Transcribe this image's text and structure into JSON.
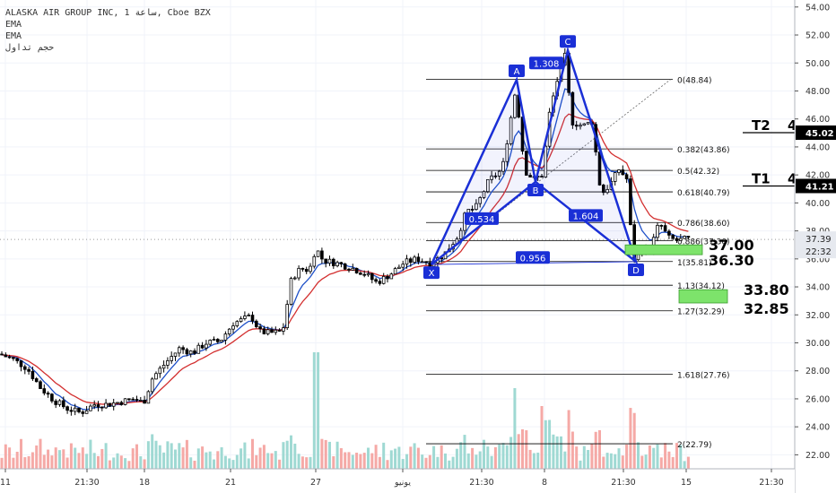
{
  "legend": {
    "title": "ALASKA AIR GROUP INC, 1 ساعة, Cboe BZX",
    "ema1": "EMA",
    "ema2": "EMA",
    "volume": "حجم تداول"
  },
  "colors": {
    "bull": "#26a69a",
    "bear": "#ef5350",
    "candle": "#000000",
    "ema_fast": "#1e50c8",
    "ema_slow": "#d32f2f",
    "pattern": "#1a2fd6",
    "zone": "#7de36b",
    "vol_up": "#9fd9d3",
    "vol_down": "#f5a9a6"
  },
  "chart_data": {
    "type": "candlestick",
    "ylim": [
      21.0,
      54.5
    ],
    "y_ticks": [
      "54.00",
      "52.00",
      "50.00",
      "48.00",
      "46.00",
      "44.00",
      "42.00",
      "40.00",
      "38.00",
      "36.00",
      "34.00",
      "32.00",
      "30.00",
      "28.00",
      "26.00",
      "24.00",
      "22.00"
    ],
    "x_ticks": [
      "11",
      "21:30",
      "18",
      "21",
      "27",
      "يونيو",
      "21:30",
      "8",
      "21:30",
      "15",
      "21:30"
    ],
    "last_price": "37.39",
    "timer": "22:32",
    "price_labels": [
      {
        "text": "45.02",
        "value": 45.02
      },
      {
        "text": "41.21",
        "value": 41.21
      }
    ],
    "fibonacci": [
      {
        "label": "0(48.84)",
        "value": 48.84
      },
      {
        "label": "0.382(43.86)",
        "value": 43.86
      },
      {
        "label": "0.5(42.32)",
        "value": 42.32
      },
      {
        "label": "0.618(40.79)",
        "value": 40.79
      },
      {
        "label": "0.786(38.60)",
        "value": 38.6
      },
      {
        "label": "0.886(37.30)",
        "value": 37.3
      },
      {
        "label": "1(35.81)",
        "value": 35.81
      },
      {
        "label": "1.13(34.12)",
        "value": 34.12
      },
      {
        "label": "1.27(32.29)",
        "value": 32.29
      },
      {
        "label": "1.618(27.76)",
        "value": 27.76
      },
      {
        "label": "2(22.79)",
        "value": 22.79
      }
    ],
    "pattern_points": [
      {
        "name": "X",
        "price": 35.6
      },
      {
        "name": "A",
        "price": 48.8
      },
      {
        "name": "B",
        "price": 41.5
      },
      {
        "name": "C",
        "price": 50.9
      },
      {
        "name": "D",
        "price": 35.8
      }
    ],
    "ratio_labels": [
      "1.308",
      "0.534",
      "1.604",
      "0.956"
    ],
    "zones": [
      {
        "upper": 37.0,
        "lower": 36.3,
        "upper_label": "37.00",
        "lower_label": "36.30"
      },
      {
        "upper": 33.8,
        "lower": 32.85,
        "upper_label": "33.80",
        "lower_label": "32.85"
      }
    ],
    "targets": [
      {
        "label": "T2",
        "count": "4",
        "value": 45.02
      },
      {
        "label": "T1",
        "count": "4",
        "value": 41.21
      }
    ],
    "close_path": [
      [
        0,
        29.2
      ],
      [
        15,
        28.8
      ],
      [
        30,
        28.2
      ],
      [
        45,
        26.8
      ],
      [
        60,
        25.9
      ],
      [
        75,
        25.3
      ],
      [
        90,
        25.0
      ],
      [
        105,
        25.6
      ],
      [
        120,
        25.6
      ],
      [
        135,
        25.8
      ],
      [
        150,
        26.0
      ],
      [
        160,
        25.7
      ],
      [
        170,
        27.5
      ],
      [
        185,
        28.6
      ],
      [
        200,
        29.6
      ],
      [
        215,
        29.3
      ],
      [
        230,
        30.0
      ],
      [
        245,
        30.1
      ],
      [
        260,
        31.4
      ],
      [
        280,
        31.9
      ],
      [
        290,
        30.8
      ],
      [
        300,
        30.7
      ],
      [
        315,
        30.8
      ],
      [
        325,
        34.6
      ],
      [
        335,
        35.3
      ],
      [
        345,
        35.2
      ],
      [
        352,
        36.8
      ],
      [
        360,
        35.9
      ],
      [
        375,
        35.7
      ],
      [
        390,
        35.4
      ],
      [
        405,
        35.0
      ],
      [
        420,
        34.3
      ],
      [
        435,
        34.9
      ],
      [
        450,
        35.7
      ],
      [
        465,
        36.0
      ],
      [
        480,
        35.7
      ],
      [
        495,
        36.3
      ],
      [
        510,
        37.6
      ],
      [
        520,
        39.4
      ],
      [
        530,
        39.6
      ],
      [
        545,
        41.6
      ],
      [
        560,
        42.4
      ],
      [
        575,
        48.2
      ],
      [
        585,
        42.3
      ],
      [
        595,
        41.7
      ],
      [
        605,
        42.0
      ],
      [
        612,
        46.2
      ],
      [
        620,
        48.5
      ],
      [
        630,
        50.5
      ],
      [
        637,
        45.8
      ],
      [
        650,
        45.5
      ],
      [
        660,
        45.8
      ],
      [
        670,
        40.6
      ],
      [
        680,
        41.3
      ],
      [
        690,
        42.4
      ],
      [
        700,
        41.6
      ],
      [
        705,
        35.9
      ],
      [
        715,
        36.6
      ],
      [
        725,
        36.7
      ],
      [
        735,
        38.6
      ],
      [
        745,
        37.5
      ],
      [
        755,
        37.3
      ],
      [
        765,
        37.4
      ]
    ]
  }
}
